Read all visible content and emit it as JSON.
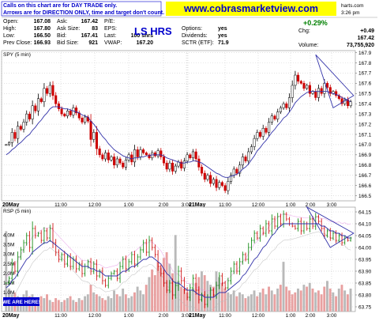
{
  "header": {
    "note_line1": "Calls on this chart are for DAY TRADE only.",
    "note_line2": "Arrows are for DIRECTION ONLY, time and target don't count.",
    "website": "www.cobrasmarketview.com",
    "time": "3:26 pm",
    "site_fragment": "harts.com",
    "stock_label": "LS HRS",
    "quotes": {
      "open_label": "Open:",
      "open": "167.08",
      "ask_label": "Ask:",
      "ask": "167.42",
      "pe_label": "P/E:",
      "pe": "",
      "high_label": "High:",
      "high": "167.80",
      "ask_size_label": "Ask Size:",
      "ask_size": "83",
      "eps_label": "EPS:",
      "options_label": "Options:",
      "options": "yes",
      "chg_label": "Chg:",
      "chg": "+0.49",
      "low_label": "Low:",
      "low": "166.50",
      "bid_label": "Bid:",
      "bid": "167.41",
      "last_label": "Last:",
      "last": "100 shrs",
      "dividends_label": "Dividends:",
      "dividends": "yes",
      "last_price": "167.42",
      "prev_close_label": "Prev Close:",
      "prev_close": "166.93",
      "bid_size_label": "Bid Size:",
      "bid_size": "921",
      "vwap_label": "VWAP:",
      "vwap": "167.20",
      "sctr_label": "SCTR (ETF):",
      "sctr": "71.9",
      "volume_label": "Volume:",
      "volume": "73,755,920",
      "pct_change": "+0.29%"
    }
  },
  "chart_data": [
    {
      "type": "line",
      "title": "SPY (5 min)",
      "ylim": [
        166.45,
        167.92
      ],
      "y_ticks": [
        167.9,
        167.8,
        167.7,
        167.6,
        167.5,
        167.4,
        167.3,
        167.2,
        167.1,
        167.0,
        166.9,
        166.8,
        166.7,
        166.6,
        166.5
      ],
      "y_tick_labels": [
        "167.9",
        "167.8",
        "167.7",
        "167.6",
        "167.5",
        "167.4",
        "167.3",
        "167.2",
        "167.1",
        "167.0",
        "166.9",
        "166.8",
        "166.7",
        "166.6",
        "166.5"
      ],
      "x_tick_labels": [
        "20May",
        "11:00",
        "12:00",
        "1:00",
        "2:00",
        "3:00",
        "21May",
        "11:00",
        "12:00",
        "1:00",
        "2:00",
        "3:00"
      ],
      "prev_close_line": 166.93,
      "series": [
        {
          "name": "",
          "close": [
            167.0,
            167.02,
            167.12,
            167.06,
            167.18,
            167.15,
            167.22,
            167.3,
            167.25,
            167.38,
            167.33,
            167.45,
            167.42,
            167.55,
            167.5,
            167.58,
            167.48,
            167.4,
            167.35,
            167.3,
            167.28,
            167.33,
            167.29,
            167.36,
            167.31,
            167.26,
            167.22,
            167.27,
            167.23,
            167.05,
            167.12,
            166.96,
            166.9,
            166.86,
            166.92,
            166.85,
            166.88,
            166.8,
            166.86,
            166.82,
            166.78,
            166.85,
            166.9,
            166.83,
            166.95,
            166.88,
            166.95,
            166.92,
            166.9,
            166.87,
            166.92,
            166.89,
            166.94,
            166.88,
            166.82,
            166.76,
            166.82,
            166.74,
            166.79,
            166.83,
            166.77,
            166.84,
            166.9,
            166.87,
            166.93,
            166.86,
            166.78,
            166.72,
            166.66,
            166.7,
            166.62,
            166.66,
            166.58,
            166.63,
            166.6,
            166.55,
            166.64,
            166.7,
            166.76,
            166.72,
            166.8,
            166.88,
            166.84,
            166.93,
            166.98,
            167.06,
            167.12,
            167.08,
            167.16,
            167.12,
            167.22,
            167.28,
            167.25,
            167.32,
            167.36,
            167.4,
            167.36,
            167.46,
            167.58,
            167.68,
            167.62,
            167.6,
            167.55,
            167.58,
            167.5,
            167.52,
            167.46,
            167.55,
            167.5,
            167.6,
            167.56,
            167.5,
            167.52,
            167.48,
            167.45,
            167.4,
            167.44,
            167.38,
            167.42
          ],
          "ma": [
            166.9,
            166.92,
            166.95,
            166.97,
            167.0,
            167.02,
            167.05,
            167.08,
            167.1,
            167.14,
            167.17,
            167.21,
            167.24,
            167.28,
            167.31,
            167.35,
            167.37,
            167.37,
            167.37,
            167.36,
            167.35,
            167.35,
            167.34,
            167.33,
            167.32,
            167.31,
            167.29,
            167.28,
            167.27,
            167.23,
            167.2,
            167.16,
            167.12,
            167.08,
            167.05,
            167.01,
            166.98,
            166.95,
            166.93,
            166.91,
            166.89,
            166.88,
            166.87,
            166.86,
            166.87,
            166.87,
            166.88,
            166.88,
            166.89,
            166.89,
            166.9,
            166.9,
            166.9,
            166.9,
            166.89,
            166.87,
            166.86,
            166.85,
            166.84,
            166.83,
            166.82,
            166.82,
            166.83,
            166.83,
            166.84,
            166.84,
            166.83,
            166.82,
            166.8,
            166.78,
            166.76,
            166.74,
            166.72,
            166.71,
            166.69,
            166.68,
            166.68,
            166.69,
            166.7,
            166.71,
            166.73,
            166.76,
            166.78,
            166.81,
            166.85,
            166.89,
            166.94,
            166.97,
            167.01,
            167.04,
            167.08,
            167.12,
            167.15,
            167.19,
            167.22,
            167.26,
            167.28,
            167.32,
            167.36,
            167.41,
            167.44,
            167.47,
            167.49,
            167.51,
            167.52,
            167.52,
            167.52,
            167.52,
            167.52,
            167.52,
            167.52,
            167.51,
            167.5,
            167.49,
            167.48,
            167.46,
            167.45,
            167.43,
            167.42
          ]
        }
      ],
      "annotations": [
        "triangle"
      ]
    },
    {
      "type": "line",
      "title": "RSP (5 min)",
      "ylim": [
        63.73,
        64.17
      ],
      "y_ticks": [
        64.15,
        64.1,
        64.05,
        64.0,
        63.95,
        63.9,
        63.85,
        63.8,
        63.75
      ],
      "y_tick_labels": [
        "64.15",
        "64.10",
        "64.05",
        "64.00",
        "63.95",
        "63.90",
        "63.85",
        "63.80",
        "63.75"
      ],
      "volume_tick_labels": [
        "4.0M",
        "3.5M",
        "3.0M",
        "2.5M",
        "2.0M",
        "1.5M",
        "1.0M",
        "500K"
      ],
      "x_tick_labels": [
        "20May",
        "11:00",
        "12:00",
        "1:00",
        "2:00",
        "3:00",
        "21May",
        "11:00",
        "12:00",
        "1:00",
        "2:00",
        "3:00"
      ],
      "prev_close_line": 63.9,
      "volume": [
        4.2,
        1.2,
        0.9,
        1.0,
        0.8,
        0.7,
        0.9,
        1.1,
        0.8,
        0.9,
        0.7,
        0.6,
        0.8,
        0.7,
        0.9,
        0.6,
        0.5,
        0.7,
        0.6,
        0.5,
        0.6,
        0.7,
        0.8,
        0.6,
        0.5,
        0.7,
        0.6,
        0.8,
        0.9,
        1.4,
        1.0,
        0.9,
        0.8,
        0.7,
        0.6,
        0.8,
        0.7,
        1.1,
        0.9,
        0.8,
        1.2,
        0.9,
        0.7,
        0.8,
        1.0,
        1.3,
        1.1,
        0.9,
        1.4,
        1.8,
        2.2,
        1.9,
        2.6,
        2.3,
        2.8,
        3.1,
        2.5,
        2.0,
        4.0,
        1.6,
        1.3,
        1.2,
        1.0,
        1.1,
        1.2,
        1.5,
        1.8,
        2.1,
        1.9,
        1.6,
        1.4,
        1.3,
        2.1,
        1.8,
        1.5,
        1.2,
        1.0,
        0.9,
        1.1,
        0.8,
        1.0,
        0.9,
        0.7,
        0.8,
        0.9,
        1.1,
        0.8,
        1.0,
        1.2,
        0.9,
        1.3,
        1.1,
        0.9,
        1.2,
        1.4,
        2.6,
        1.3,
        1.1,
        0.9,
        1.0,
        1.2,
        1.1,
        1.4,
        1.3,
        1.5,
        1.2,
        1.0,
        1.1,
        0.9,
        1.3,
        1.6,
        1.2,
        1.0,
        0.8,
        1.2,
        1.4,
        1.1,
        0.9,
        1.2
      ],
      "series": [
        {
          "name": "",
          "close": [
            63.85,
            63.87,
            63.93,
            63.9,
            63.96,
            63.99,
            64.02,
            64.05,
            64.0,
            64.08,
            64.05,
            64.06,
            64.03,
            64.07,
            64.04,
            64.08,
            64.02,
            63.98,
            63.95,
            63.97,
            63.93,
            63.96,
            63.92,
            63.95,
            63.91,
            63.93,
            63.89,
            63.92,
            63.94,
            63.9,
            63.93,
            63.88,
            63.9,
            63.86,
            63.84,
            63.87,
            63.89,
            63.9,
            63.87,
            63.92,
            63.95,
            63.91,
            63.94,
            63.97,
            63.93,
            63.96,
            63.99,
            64.02,
            63.98,
            64.03,
            64.0,
            63.97,
            63.92,
            63.89,
            63.85,
            63.82,
            63.85,
            63.8,
            63.84,
            63.9,
            63.86,
            63.82,
            63.79,
            63.83,
            63.87,
            63.82,
            63.78,
            63.8,
            63.76,
            63.79,
            63.82,
            63.8,
            63.84,
            63.88,
            63.85,
            63.83,
            63.86,
            63.9,
            63.93,
            63.9,
            63.94,
            63.97,
            63.95,
            64.0,
            64.03,
            64.06,
            64.04,
            64.08,
            64.06,
            64.1,
            64.07,
            64.12,
            64.09,
            64.13,
            64.1,
            64.14,
            64.12,
            64.1,
            64.09,
            64.08,
            64.11,
            64.07,
            64.1,
            64.08,
            64.12,
            64.09,
            64.13,
            64.11,
            64.08,
            64.05,
            64.07,
            64.04,
            64.06,
            64.03,
            64.05,
            64.02,
            64.04,
            64.03,
            64.04
          ],
          "ma": [
            63.83,
            63.84,
            63.86,
            63.87,
            63.89,
            63.91,
            63.93,
            63.95,
            63.96,
            63.98,
            63.99,
            64.0,
            64.01,
            64.02,
            64.02,
            64.03,
            64.02,
            64.01,
            64.0,
            63.99,
            63.98,
            63.97,
            63.96,
            63.95,
            63.94,
            63.93,
            63.92,
            63.92,
            63.92,
            63.91,
            63.91,
            63.9,
            63.9,
            63.89,
            63.88,
            63.88,
            63.88,
            63.88,
            63.88,
            63.89,
            63.9,
            63.9,
            63.91,
            63.92,
            63.92,
            63.93,
            63.94,
            63.95,
            63.95,
            63.96,
            63.96,
            63.95,
            63.94,
            63.93,
            63.91,
            63.89,
            63.88,
            63.86,
            63.85,
            63.85,
            63.84,
            63.83,
            63.82,
            63.82,
            63.82,
            63.81,
            63.8,
            63.8,
            63.79,
            63.79,
            63.79,
            63.79,
            63.8,
            63.81,
            63.81,
            63.81,
            63.82,
            63.83,
            63.84,
            63.85,
            63.86,
            63.88,
            63.89,
            63.91,
            63.93,
            63.95,
            63.96,
            63.98,
            64.0,
            64.01,
            64.03,
            64.05,
            64.06,
            64.08,
            64.09,
            64.1,
            64.1,
            64.1,
            64.1,
            64.1,
            64.1,
            64.1,
            64.1,
            64.1,
            64.1,
            64.1,
            64.1,
            64.1,
            64.09,
            64.09,
            64.08,
            64.07,
            64.07,
            64.06,
            64.06,
            64.05,
            64.05,
            64.04,
            64.04
          ]
        }
      ],
      "annotations": [
        "triangle"
      ]
    }
  ],
  "footer": {
    "badge": "WE ARE HERE!"
  },
  "colors": {
    "up": "#008000",
    "down": "#cc0000",
    "ma": "#3333aa",
    "grid": "#cfcfcf",
    "prev_close": "#3333aa",
    "accent_blue": "#0000cc",
    "volume": "#b0b0b0",
    "ribbon": "#e58ee5"
  }
}
